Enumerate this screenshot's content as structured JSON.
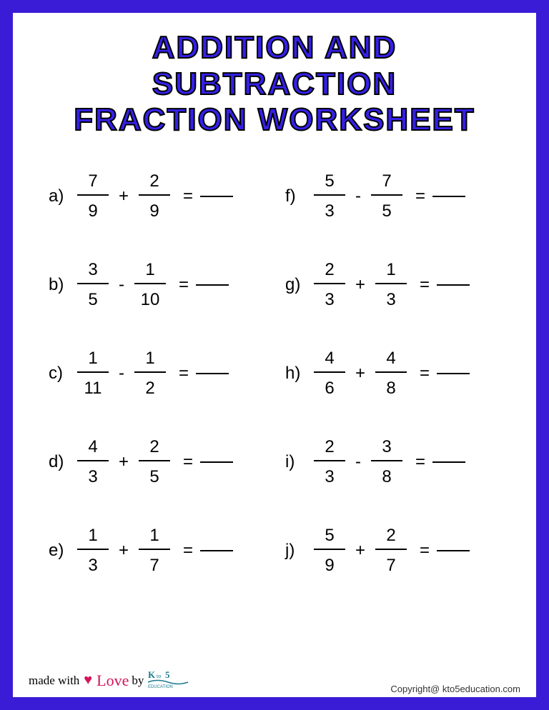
{
  "title": {
    "line1": "ADDITION AND SUBTRACTION",
    "line2": "FRACTION WORKSHEET",
    "color": "#3520e8",
    "stroke_color": "#000000",
    "fontsize": 44
  },
  "border_color": "#3a1bd6",
  "border_width": 18,
  "background_color": "#ffffff",
  "problem_style": {
    "fontsize": 24,
    "text_color": "#000000",
    "fraction_bar_width": 44,
    "blank_width": 46
  },
  "problems": [
    {
      "label": "a)",
      "n1": "7",
      "d1": "9",
      "op": "+",
      "n2": "2",
      "d2": "9"
    },
    {
      "label": "f)",
      "n1": "5",
      "d1": "3",
      "op": "-",
      "n2": "7",
      "d2": "5"
    },
    {
      "label": "b)",
      "n1": "3",
      "d1": "5",
      "op": "-",
      "n2": "1",
      "d2": "10"
    },
    {
      "label": "g)",
      "n1": "2",
      "d1": "3",
      "op": "+",
      "n2": "1",
      "d2": "3"
    },
    {
      "label": "c)",
      "n1": "1",
      "d1": "11",
      "op": "-",
      "n2": "1",
      "d2": "2"
    },
    {
      "label": "h)",
      "n1": "4",
      "d1": "6",
      "op": "+",
      "n2": "4",
      "d2": "8"
    },
    {
      "label": "d)",
      "n1": "4",
      "d1": "3",
      "op": "+",
      "n2": "2",
      "d2": "5"
    },
    {
      "label": "i)",
      "n1": "2",
      "d1": "3",
      "op": "-",
      "n2": "3",
      "d2": "8"
    },
    {
      "label": "e)",
      "n1": "1",
      "d1": "3",
      "op": "+",
      "n2": "1",
      "d2": "7"
    },
    {
      "label": "j)",
      "n1": "5",
      "d1": "9",
      "op": "+",
      "n2": "2",
      "d2": "7"
    }
  ],
  "footer": {
    "copyright": "Copyright@ kto5education.com",
    "madewith_prefix": "made with",
    "madewith_love": "Love",
    "madewith_by": "by",
    "logo_text": "K to 5",
    "logo_sub": "EDUCATION",
    "logo_color": "#1b7a8c",
    "heart_color": "#d4145a"
  }
}
